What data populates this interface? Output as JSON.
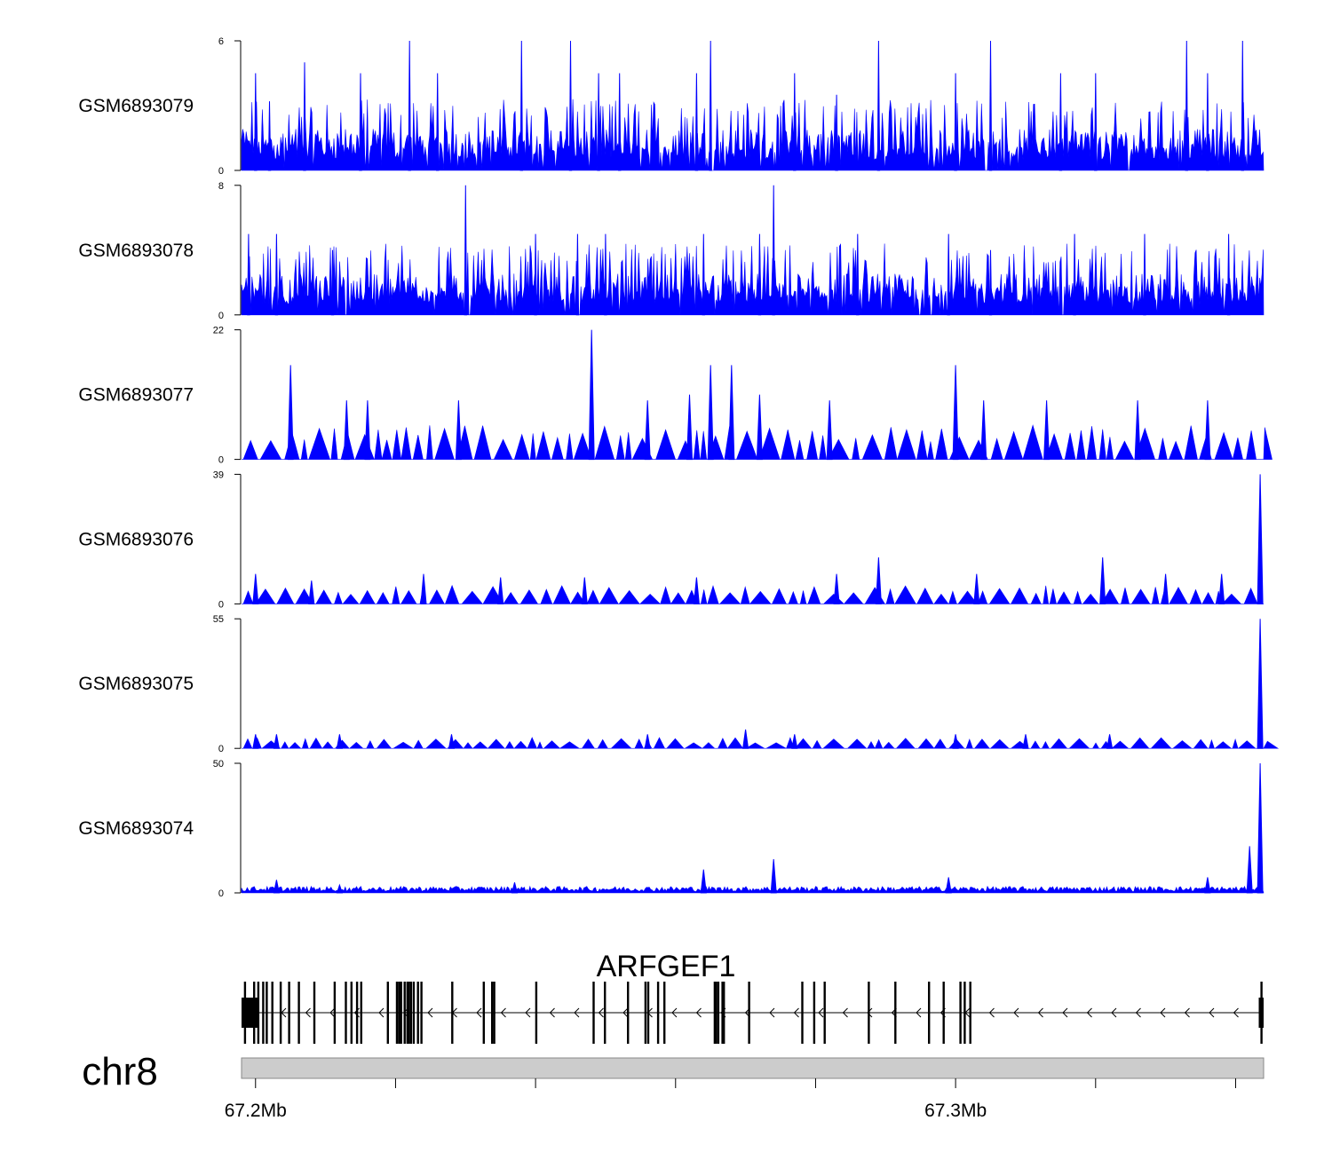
{
  "chart_data": {
    "type": "area",
    "genome": {
      "chromosome": "chr8",
      "region_start_mb": 67.198,
      "region_end_mb": 67.344,
      "axis_ticks_mb": [
        67.2,
        67.22,
        67.24,
        67.26,
        67.28,
        67.3,
        67.32,
        67.34
      ],
      "axis_labels": [
        {
          "mb": 67.2,
          "text": "67.2Mb"
        },
        {
          "mb": 67.3,
          "text": "67.3Mb"
        }
      ]
    },
    "tracks": [
      {
        "name": "GSM6893079",
        "ymin": 0,
        "ymax": 6,
        "color": "#0000ff",
        "style": "dense",
        "peaks": [
          [
            67.2,
            4.5
          ],
          [
            67.202,
            3.2
          ],
          [
            67.207,
            5.0
          ],
          [
            67.215,
            4.5
          ],
          [
            67.222,
            6.0
          ],
          [
            67.226,
            4.5
          ],
          [
            67.238,
            6.0
          ],
          [
            67.245,
            6.0
          ],
          [
            67.249,
            4.5
          ],
          [
            67.252,
            4.5
          ],
          [
            67.263,
            4.5
          ],
          [
            67.265,
            6.0
          ],
          [
            67.277,
            4.5
          ],
          [
            67.283,
            3.5
          ],
          [
            67.289,
            6.0
          ],
          [
            67.3,
            4.5
          ],
          [
            67.305,
            6.0
          ],
          [
            67.315,
            4.5
          ],
          [
            67.32,
            4.5
          ],
          [
            67.333,
            6.0
          ],
          [
            67.336,
            4.5
          ],
          [
            67.341,
            6.0
          ]
        ]
      },
      {
        "name": "GSM6893078",
        "ymin": 0,
        "ymax": 8,
        "color": "#0000ff",
        "style": "dense",
        "peaks": [
          [
            67.199,
            5.0
          ],
          [
            67.203,
            5.0
          ],
          [
            67.211,
            4.0
          ],
          [
            67.23,
            8.0
          ],
          [
            67.24,
            5.0
          ],
          [
            67.246,
            5.0
          ],
          [
            67.25,
            5.0
          ],
          [
            67.264,
            5.0
          ],
          [
            67.272,
            5.0
          ],
          [
            67.274,
            8.0
          ],
          [
            67.286,
            5.0
          ],
          [
            67.299,
            5.0
          ],
          [
            67.305,
            4.0
          ],
          [
            67.317,
            5.0
          ],
          [
            67.327,
            5.0
          ],
          [
            67.339,
            5.0
          ]
        ]
      },
      {
        "name": "GSM6893077",
        "ymin": 0,
        "ymax": 22,
        "color": "#0000ff",
        "style": "sparse",
        "peaks": [
          [
            67.205,
            16.0
          ],
          [
            67.213,
            10.0
          ],
          [
            67.216,
            10.0
          ],
          [
            67.229,
            10.0
          ],
          [
            67.248,
            22.0
          ],
          [
            67.256,
            10.0
          ],
          [
            67.262,
            11.0
          ],
          [
            67.265,
            16.0
          ],
          [
            67.268,
            16.0
          ],
          [
            67.272,
            11.0
          ],
          [
            67.282,
            10.0
          ],
          [
            67.3,
            16.0
          ],
          [
            67.304,
            10.0
          ],
          [
            67.313,
            10.0
          ],
          [
            67.326,
            10.0
          ],
          [
            67.336,
            10.0
          ]
        ]
      },
      {
        "name": "GSM6893076",
        "ymin": 0,
        "ymax": 39,
        "color": "#0000ff",
        "style": "sparse",
        "peaks": [
          [
            67.2,
            9.0
          ],
          [
            67.208,
            7.0
          ],
          [
            67.224,
            9.0
          ],
          [
            67.235,
            8.0
          ],
          [
            67.247,
            8.0
          ],
          [
            67.263,
            8.0
          ],
          [
            67.283,
            9.0
          ],
          [
            67.289,
            14.0
          ],
          [
            67.303,
            9.0
          ],
          [
            67.321,
            14.0
          ],
          [
            67.33,
            9.0
          ],
          [
            67.338,
            9.0
          ],
          [
            67.3435,
            39.0
          ]
        ]
      },
      {
        "name": "GSM6893075",
        "ymin": 0,
        "ymax": 55,
        "color": "#0000ff",
        "style": "sparse",
        "peaks": [
          [
            67.2,
            6.0
          ],
          [
            67.203,
            6.0
          ],
          [
            67.212,
            6.0
          ],
          [
            67.228,
            6.0
          ],
          [
            67.256,
            6.0
          ],
          [
            67.27,
            8.0
          ],
          [
            67.277,
            6.0
          ],
          [
            67.3,
            6.0
          ],
          [
            67.31,
            6.0
          ],
          [
            67.322,
            6.0
          ],
          [
            67.3435,
            55.0
          ]
        ]
      },
      {
        "name": "GSM6893074",
        "ymin": 0,
        "ymax": 50,
        "color": "#0000ff",
        "style": "low",
        "peaks": [
          [
            67.203,
            5.0
          ],
          [
            67.212,
            3.0
          ],
          [
            67.237,
            4.0
          ],
          [
            67.264,
            9.0
          ],
          [
            67.274,
            13.0
          ],
          [
            67.299,
            6.0
          ],
          [
            67.336,
            6.0
          ],
          [
            67.342,
            18.0
          ],
          [
            67.3435,
            50.0
          ]
        ]
      }
    ],
    "gene": {
      "label": "ARFGEF1",
      "strand": "-",
      "start_mb": 67.198,
      "end_mb": 67.344,
      "exons_mb": [
        67.1985,
        67.1998,
        67.2004,
        67.2011,
        67.2016,
        67.2024,
        67.2036,
        67.2048,
        67.2062,
        67.2084,
        67.2113,
        67.2129,
        67.2137,
        67.2145,
        67.2151,
        67.2189,
        67.2202,
        67.2205,
        67.2208,
        67.2213,
        67.2217,
        67.2219,
        67.2222,
        67.2226,
        67.2232,
        67.2281,
        67.2237,
        67.2326,
        67.2338,
        67.2341,
        67.2401,
        67.2483,
        67.2499,
        67.2532,
        67.2557,
        67.2561,
        67.2575,
        67.2584,
        67.2656,
        67.2658,
        67.2661,
        67.2667,
        67.2669,
        67.2705,
        67.2781,
        67.2798,
        67.2813,
        67.2876,
        67.2914,
        67.2962,
        67.2983,
        67.3007,
        67.3013,
        67.3021,
        67.3437
      ],
      "utr_blocks_mb": [
        [
          67.198,
          67.2005
        ],
        [
          67.3433,
          67.344
        ]
      ]
    }
  }
}
